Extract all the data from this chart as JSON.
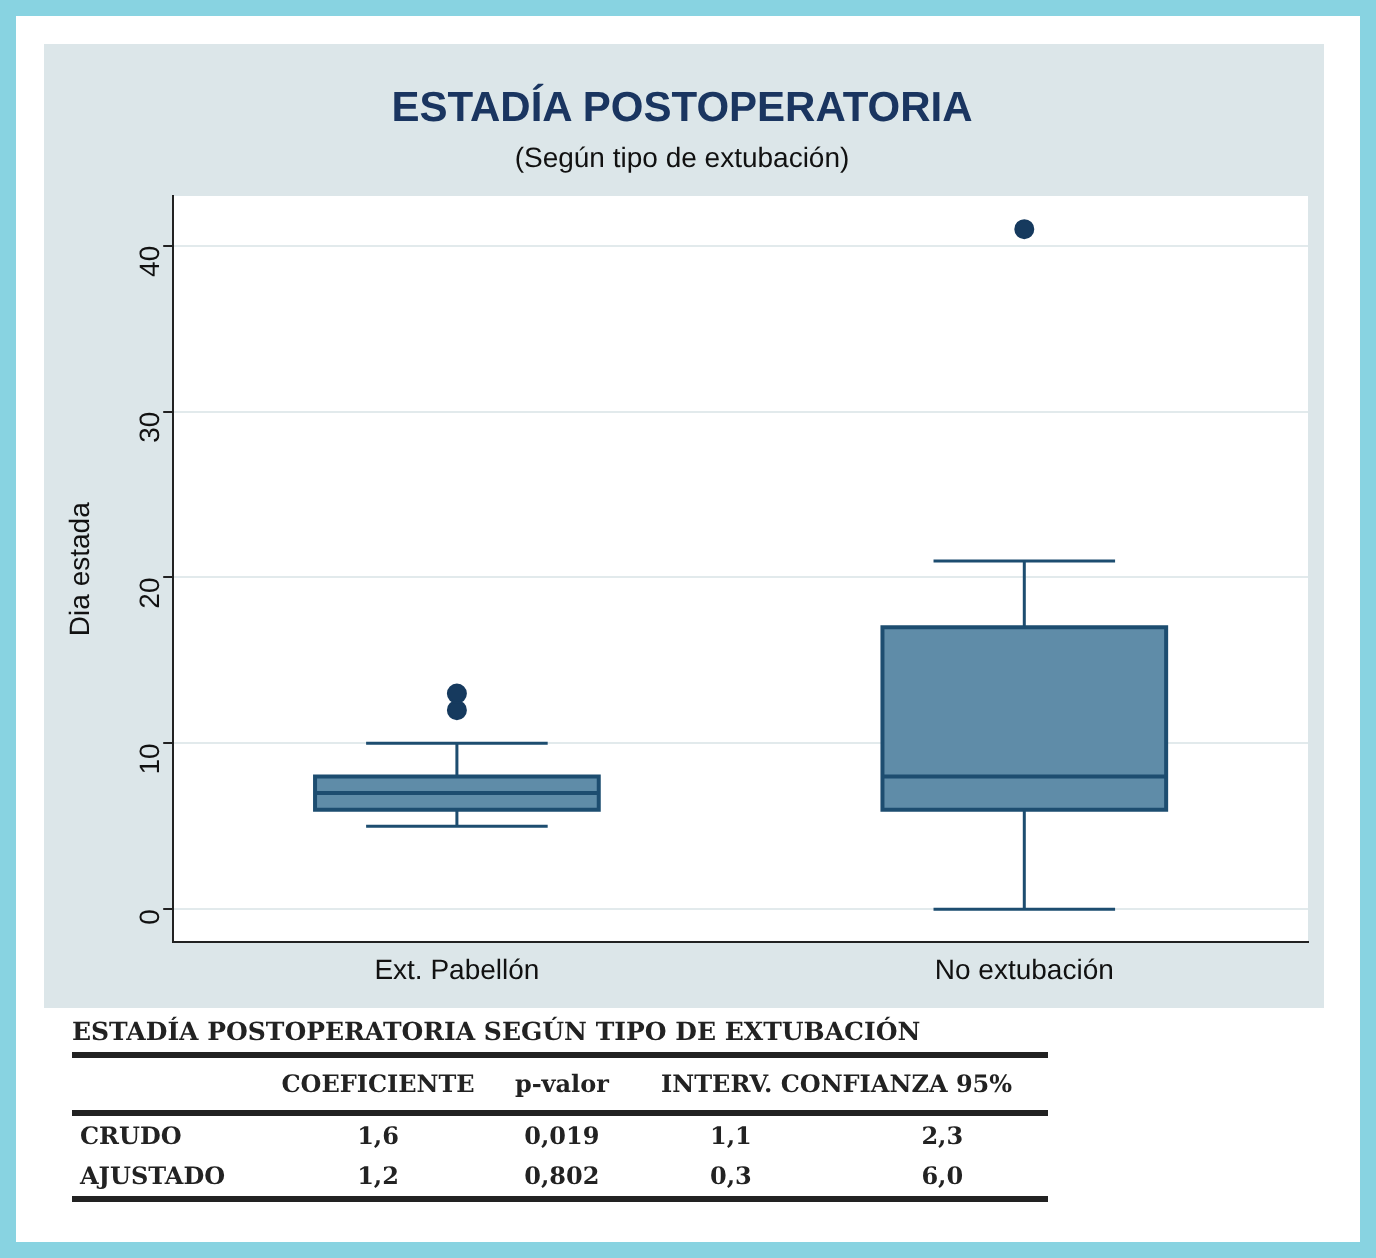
{
  "chart_data": [
    {
      "type": "box",
      "title": "ESTADÍA POSTOPERATORIA",
      "subtitle": "(Según tipo de extubación)",
      "ylabel": "Dia estada",
      "categories": [
        "Ext. Pabellón",
        "No extubación"
      ],
      "color": "#5f8ca8",
      "ylim": [
        -2,
        43
      ],
      "yticks": [
        0,
        10,
        20,
        30,
        40
      ],
      "grid": "y",
      "legend": false,
      "boxes": [
        {
          "low": 5,
          "q1": 6,
          "median": 7,
          "q3": 8,
          "high": 10,
          "outliers": [
            12,
            13
          ]
        },
        {
          "low": 0,
          "q1": 6,
          "median": 8,
          "q3": 17,
          "high": 21,
          "outliers": [
            41
          ]
        }
      ]
    },
    {
      "type": "other",
      "title": "ESTADÍA POSTOPERATORIA SEGÚN TIPO DE EXTUBACIÓN",
      "annotations": [
        "COEFICIENTE",
        "p-valor",
        "INTERV. CONFIANZA 95%",
        "CRUDO",
        "1,6",
        "0,019",
        "1,1",
        "2,3",
        "AJUSTADO",
        "1,2",
        "0,802",
        "0,3",
        "6,0"
      ]
    }
  ]
}
